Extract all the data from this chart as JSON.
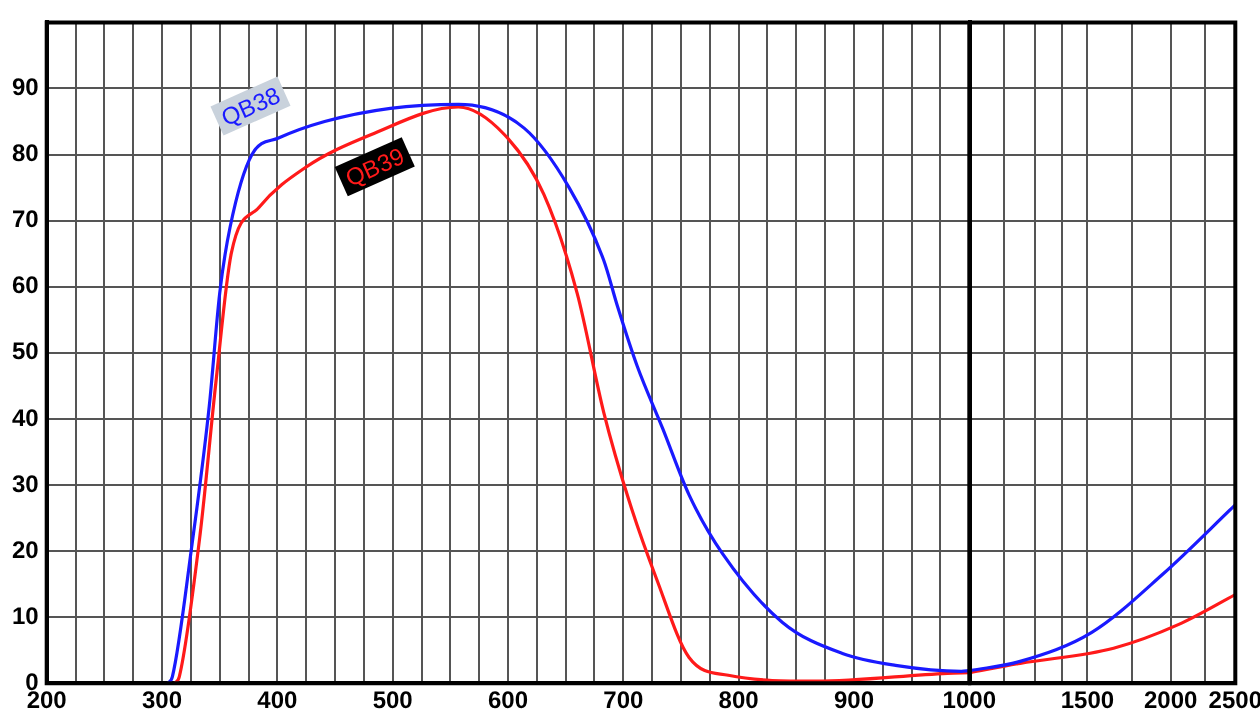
{
  "chart_data": [
    {
      "type": "line",
      "xlim": [
        200,
        1000
      ],
      "ylim": [
        0,
        100
      ],
      "grid": true,
      "marker": "none",
      "xticks": [
        200,
        {
          "value": 225,
          "label": null
        },
        {
          "value": 250,
          "label": null
        },
        {
          "value": 275,
          "label": null
        },
        300,
        {
          "value": 325,
          "label": null
        },
        {
          "value": 350,
          "label": null
        },
        {
          "value": 375,
          "label": null
        },
        400,
        {
          "value": 425,
          "label": null
        },
        {
          "value": 450,
          "label": null
        },
        {
          "value": 475,
          "label": null
        },
        500,
        {
          "value": 525,
          "label": null
        },
        {
          "value": 550,
          "label": null
        },
        {
          "value": 575,
          "label": null
        },
        600,
        {
          "value": 625,
          "label": null
        },
        {
          "value": 650,
          "label": null
        },
        {
          "value": 675,
          "label": null
        },
        700,
        {
          "value": 725,
          "label": null
        },
        {
          "value": 750,
          "label": null
        },
        {
          "value": 775,
          "label": null
        },
        800,
        {
          "value": 825,
          "label": null
        },
        {
          "value": 850,
          "label": null
        },
        {
          "value": 875,
          "label": null
        },
        900,
        {
          "value": 925,
          "label": null
        },
        {
          "value": 950,
          "label": null
        },
        {
          "value": 975,
          "label": null
        },
        1000
      ],
      "yticks": [
        0,
        10,
        20,
        30,
        40,
        50,
        60,
        70,
        80,
        90
      ],
      "series": [
        {
          "name": "QB38",
          "color": "#1a1aff",
          "x": [
            305,
            309,
            326,
            341,
            350,
            359,
            378,
            401,
            441,
            498,
            557,
            614,
            653,
            683,
            695,
            712,
            734,
            757,
            786,
            838,
            890,
            936,
            993,
            1000
          ],
          "values": [
            0,
            1,
            21,
            42,
            59,
            69,
            80,
            82.5,
            85,
            87,
            87.6,
            84,
            75,
            64,
            57,
            48,
            38.6,
            28.5,
            19.6,
            9.2,
            4.5,
            2.7,
            1.8,
            1.9
          ]
        },
        {
          "name": "QB39",
          "color": "#ff1a1a",
          "x": [
            311,
            315,
            333,
            347,
            360,
            384,
            424,
            481,
            557,
            597,
            631,
            660,
            683,
            705,
            729,
            757,
            791,
            867,
            981,
            1000
          ],
          "values": [
            0,
            1,
            22.5,
            46,
            65,
            72,
            78,
            83,
            87.2,
            83,
            74,
            59,
            41,
            27.6,
            15.7,
            3.9,
            1.2,
            0.3,
            1.5,
            1.6
          ]
        }
      ]
    },
    {
      "type": "line",
      "xlim": [
        1000,
        2500
      ],
      "ylim": [
        0,
        100
      ],
      "log": "x",
      "grid": true,
      "marker": "none",
      "tick_labels": "x",
      "xticks": [
        {
          "value": 1000,
          "label": null
        },
        {
          "value": 1125,
          "label": null
        },
        {
          "value": 1250,
          "label": null
        },
        {
          "value": 1375,
          "label": null
        },
        1500,
        {
          "value": 1750,
          "label": null
        },
        2000,
        {
          "value": 2250,
          "label": null
        },
        2500
      ],
      "yticks": [
        {
          "value": 0,
          "label": null
        },
        {
          "value": 10,
          "label": null
        },
        {
          "value": 20,
          "label": null
        },
        {
          "value": 30,
          "label": null
        },
        {
          "value": 40,
          "label": null
        },
        {
          "value": 50,
          "label": null
        },
        {
          "value": 60,
          "label": null
        },
        {
          "value": 70,
          "label": null
        },
        {
          "value": 80,
          "label": null
        },
        {
          "value": 90,
          "label": null
        }
      ],
      "series": [
        {
          "color": "#1a1aff",
          "x": [
            1000,
            1189,
            1523,
            1951,
            2500
          ],
          "values": [
            1.9,
            3.3,
            7.7,
            16.6,
            27
          ]
        },
        {
          "color": "#ff1a1a",
          "x": [
            1000,
            1189,
            1642,
            2057,
            2500
          ],
          "values": [
            1.6,
            3,
            5.3,
            8.9,
            13.4
          ]
        }
      ]
    }
  ]
}
